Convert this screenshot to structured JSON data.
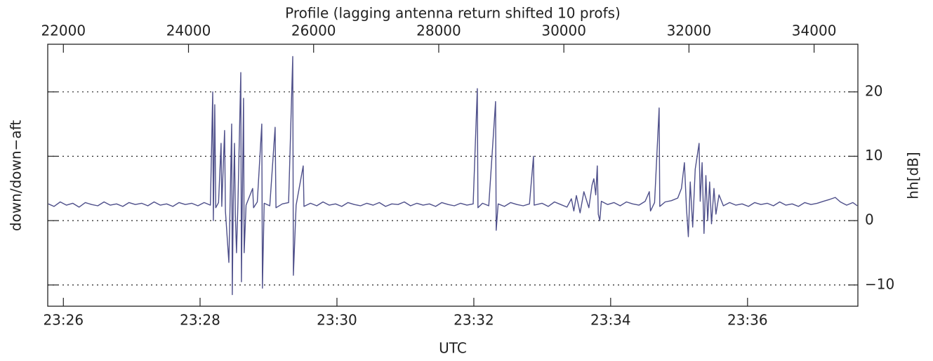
{
  "chart_data": {
    "type": "line",
    "x2label": "Profile (lagging antenna return shifted 10 profs)",
    "xlabel": "UTC",
    "ylabel": "down/down−aft",
    "y2label": "hh[dB]",
    "xlim": [
      21750,
      34700
    ],
    "xticks": [
      {
        "value": 22000,
        "label": "23:26"
      },
      {
        "value": 24185,
        "label": "23:28"
      },
      {
        "value": 26373,
        "label": "23:30"
      },
      {
        "value": 28561,
        "label": "23:32"
      },
      {
        "value": 30748,
        "label": "23:34"
      },
      {
        "value": 32936,
        "label": "23:36"
      }
    ],
    "x2ticks": [
      22000,
      24000,
      26000,
      28000,
      30000,
      32000,
      34000
    ],
    "y2lim": [
      -13.3,
      27.4
    ],
    "y2ticks": [
      {
        "value": -10,
        "label": "−10"
      },
      0,
      10,
      20
    ],
    "grid": true,
    "x": [
      21760,
      21850,
      21950,
      22050,
      22150,
      22250,
      22350,
      22450,
      22550,
      22650,
      22750,
      22850,
      22950,
      23050,
      23150,
      23250,
      23350,
      23450,
      23550,
      23650,
      23750,
      23850,
      23950,
      24050,
      24150,
      24250,
      24350,
      24387,
      24397,
      24420,
      24435,
      24480,
      24521,
      24532,
      24577,
      24590,
      24645,
      24665,
      24690,
      24700,
      24715,
      24735,
      24748,
      24768,
      24790,
      24836,
      24846,
      24860,
      24880,
      24890,
      24920,
      25026,
      25040,
      25100,
      25172,
      25182,
      25210,
      25300,
      25385,
      25398,
      25500,
      25600,
      25666,
      25676,
      25720,
      25834,
      25846,
      25950,
      26050,
      26150,
      26250,
      26350,
      26450,
      26550,
      26650,
      26750,
      26850,
      26950,
      27050,
      27150,
      27250,
      27350,
      27450,
      27550,
      27650,
      27750,
      27850,
      27950,
      28050,
      28150,
      28250,
      28350,
      28450,
      28550,
      28617,
      28627,
      28700,
      28800,
      28908,
      28918,
      28950,
      29050,
      29150,
      29250,
      29350,
      29450,
      29514,
      29526,
      29650,
      29750,
      29850,
      29950,
      30050,
      30120,
      30160,
      30200,
      30260,
      30320,
      30400,
      30450,
      30480,
      30510,
      30535,
      30550,
      30575,
      30600,
      30700,
      30800,
      30900,
      31000,
      31100,
      31200,
      31300,
      31366,
      31385,
      31450,
      31523,
      31533,
      31620,
      31720,
      31820,
      31880,
      31927,
      31960,
      31990,
      32020,
      32060,
      32100,
      32162,
      32180,
      32210,
      32240,
      32270,
      32300,
      32330,
      32360,
      32400,
      32431,
      32480,
      32550,
      32650,
      32750,
      32850,
      32950,
      33050,
      33150,
      33250,
      33350,
      33450,
      33550,
      33650,
      33750,
      33850,
      33950,
      34050,
      34150,
      34250,
      34339,
      34420,
      34520,
      34620,
      34690
    ],
    "series": [
      {
        "color": "#4e4f8a",
        "axis": "y2",
        "values": [
          2.6,
          2.2,
          2.9,
          2.4,
          2.7,
          2.1,
          2.8,
          2.5,
          2.3,
          2.9,
          2.4,
          2.6,
          2.2,
          2.8,
          2.5,
          2.7,
          2.3,
          2.9,
          2.4,
          2.6,
          2.2,
          2.8,
          2.5,
          2.7,
          2.3,
          2.8,
          2.4,
          20,
          0,
          18,
          2.0,
          2.8,
          12,
          2.2,
          14,
          1.5,
          -6.5,
          2.8,
          15,
          -11.5,
          2.3,
          12,
          1.0,
          -5,
          2.6,
          23,
          -9.5,
          3.0,
          19,
          -5,
          2.4,
          5,
          2.0,
          2.9,
          15,
          -10.5,
          2.7,
          2.3,
          14.5,
          2.0,
          2.6,
          2.8,
          25.5,
          -8.5,
          2.4,
          8.5,
          2.2,
          2.7,
          2.3,
          2.9,
          2.4,
          2.6,
          2.2,
          2.8,
          2.5,
          2.3,
          2.7,
          2.4,
          2.8,
          2.2,
          2.6,
          2.5,
          2.9,
          2.3,
          2.7,
          2.4,
          2.6,
          2.2,
          2.8,
          2.5,
          2.3,
          2.7,
          2.4,
          2.6,
          20.5,
          2.0,
          2.7,
          2.3,
          18.5,
          -1.5,
          2.6,
          2.2,
          2.8,
          2.5,
          2.3,
          2.6,
          10,
          2.4,
          2.7,
          2.2,
          2.9,
          2.5,
          2.1,
          3.4,
          1.5,
          3.9,
          1.2,
          4.5,
          2.0,
          5.5,
          6.5,
          4.0,
          8.5,
          1.0,
          0.0,
          3.0,
          2.5,
          2.8,
          2.3,
          2.9,
          2.6,
          2.4,
          3.0,
          4.5,
          1.5,
          2.8,
          17.5,
          2.2,
          2.9,
          3.1,
          3.5,
          5,
          9,
          2,
          -2.5,
          6,
          -1,
          8,
          12,
          3,
          9,
          -2,
          7,
          0,
          6,
          -0.5,
          5,
          1,
          4,
          2.3,
          2.8,
          2.4,
          2.6,
          2.2,
          2.8,
          2.5,
          2.7,
          2.3,
          2.9,
          2.4,
          2.6,
          2.2,
          2.8,
          2.5,
          2.7,
          3.0,
          3.3,
          3.6,
          2.9,
          2.4,
          2.8,
          2.3
        ]
      }
    ]
  }
}
